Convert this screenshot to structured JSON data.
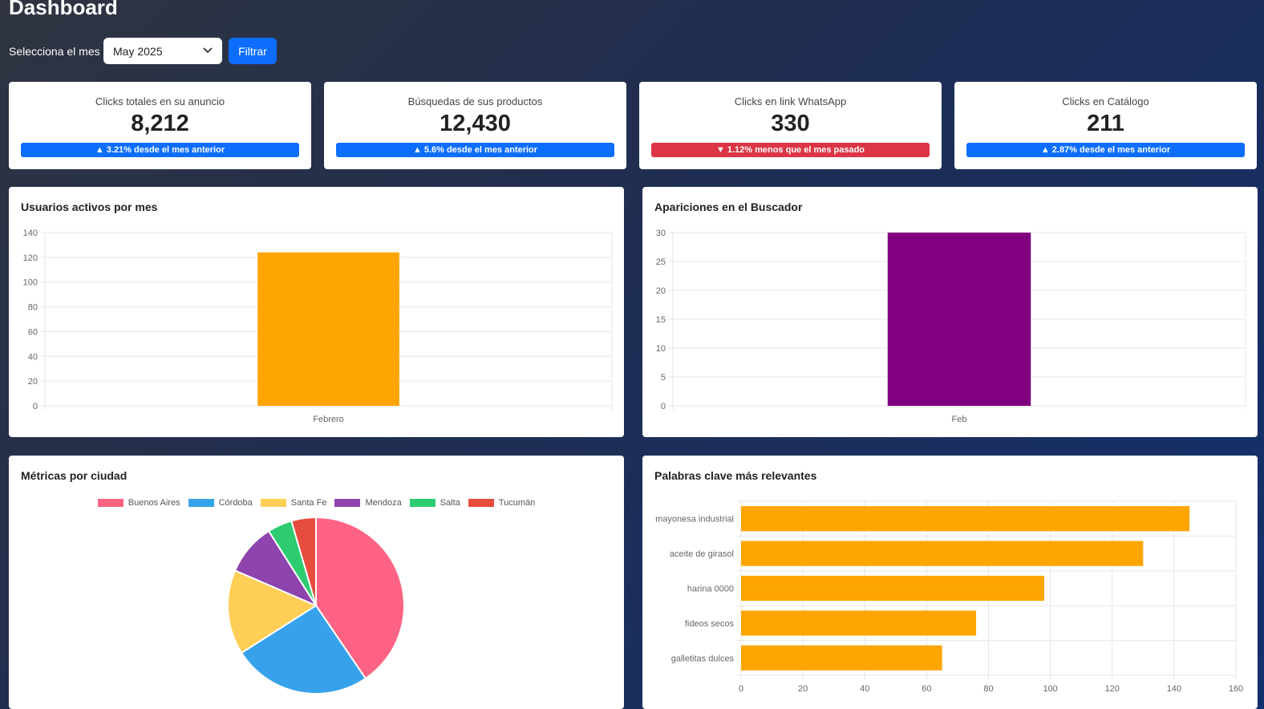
{
  "header": {
    "title": "Dashboard"
  },
  "filter": {
    "label": "Selecciona el mes",
    "selected_month": "May 2025",
    "button_label": "Filtrar"
  },
  "kpis": [
    {
      "label": "Clicks totales en su anuncio",
      "value": "8,212",
      "change": "3.21% desde el mes anterior",
      "trend": "up"
    },
    {
      "label": "Búsquedas de sus productos",
      "value": "12,430",
      "change": "5.6% desde el mes anterior",
      "trend": "up"
    },
    {
      "label": "Clicks en link WhatsApp",
      "value": "330",
      "change": "1.12% menos que el mes pasado",
      "trend": "down"
    },
    {
      "label": "Clicks en Catálogo",
      "value": "211",
      "change": "2.87% desde el mes anterior",
      "trend": "up"
    }
  ],
  "colors": {
    "primary": "#0d6efd",
    "danger": "#dc3545",
    "orange": "#FFA500",
    "purple": "#800080"
  },
  "chart_data": [
    {
      "id": "users",
      "type": "bar",
      "title": "Usuarios activos por mes",
      "categories": [
        "Febrero"
      ],
      "values": [
        124
      ],
      "ylim": [
        0,
        140
      ],
      "yticks": [
        0,
        20,
        40,
        60,
        80,
        100,
        120,
        140
      ],
      "color": "#FFA500",
      "grid": true
    },
    {
      "id": "search",
      "type": "bar",
      "title": "Apariciones en el Buscador",
      "categories": [
        "Feb"
      ],
      "values": [
        30
      ],
      "ylim": [
        0,
        30
      ],
      "yticks": [
        0,
        5,
        10,
        15,
        20,
        25,
        30
      ],
      "color": "#800080",
      "grid": true
    },
    {
      "id": "cities",
      "type": "pie",
      "title": "Métricas por ciudad",
      "categories": [
        "Buenos Aires",
        "Córdoba",
        "Santa Fe",
        "Mendoza",
        "Salta",
        "Tucumán"
      ],
      "values": [
        40.5,
        25.5,
        15.5,
        9.5,
        4.5,
        4.5
      ],
      "colors": [
        "#FF6384",
        "#36A2EB",
        "#FFCE56",
        "#8E44AD",
        "#2ECC71",
        "#E74C3C"
      ],
      "legend": "top"
    },
    {
      "id": "keywords",
      "type": "bar",
      "orientation": "horizontal",
      "title": "Palabras clave más relevantes",
      "categories": [
        "mayonesa industrial",
        "aceite de girasol",
        "harina 0000",
        "fideos secos",
        "galletitas dulces"
      ],
      "values": [
        145,
        130,
        98,
        76,
        65
      ],
      "xlim": [
        0,
        160
      ],
      "xticks": [
        0,
        20,
        40,
        60,
        80,
        100,
        120,
        140,
        160
      ],
      "color": "#FFA500",
      "grid": true
    }
  ]
}
